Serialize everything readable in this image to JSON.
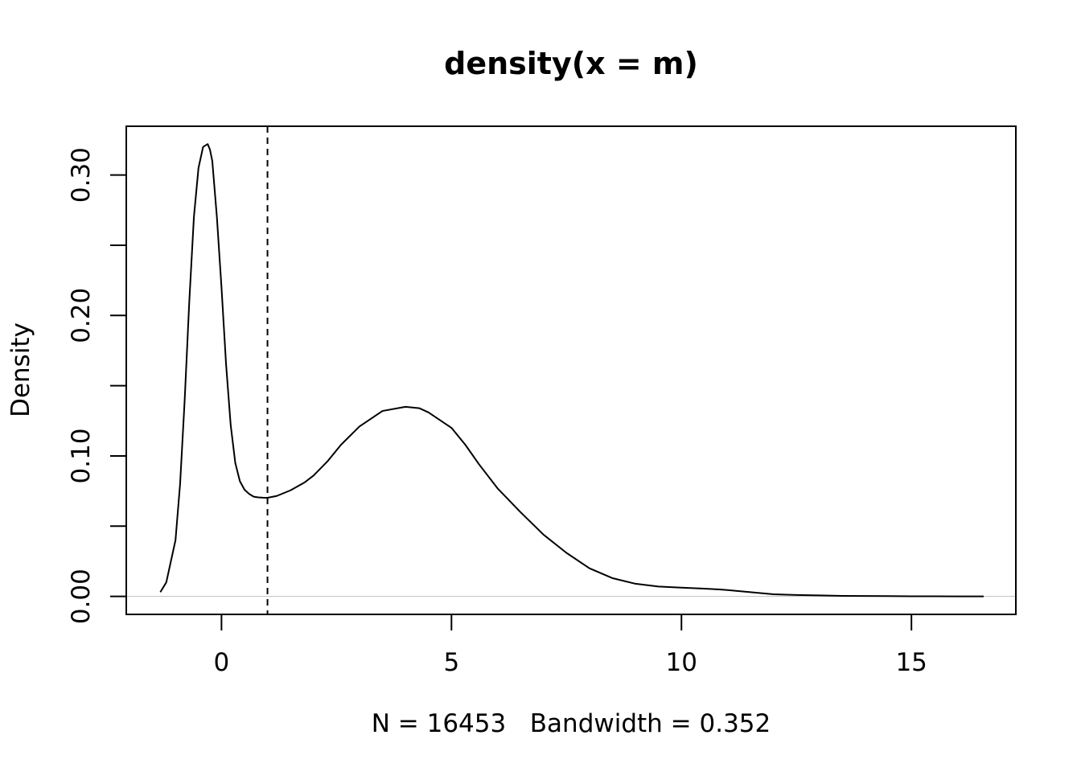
{
  "chart_data": {
    "type": "line",
    "title": "density(x = m)",
    "xlabel": "N = 16453   Bandwidth = 0.352",
    "ylabel": "Density",
    "xlim": [
      -2.07,
      17.27
    ],
    "ylim": [
      -0.0128,
      0.3347
    ],
    "x_ticks": [
      0,
      5,
      10,
      15
    ],
    "x_tick_labels": [
      "0",
      "5",
      "10",
      "15"
    ],
    "y_ticks": [
      0.0,
      0.05,
      0.1,
      0.15,
      0.2,
      0.25,
      0.3
    ],
    "y_tick_labels": [
      "0.00",
      "",
      "0.10",
      "",
      "0.20",
      "",
      "0.30"
    ],
    "grid": false,
    "legend": "none",
    "colors": {
      "line": "#000000",
      "baseline": "#bebebe",
      "vline": "#000000"
    },
    "baseline": 0,
    "vline": {
      "x": 1.0,
      "style": "dashed"
    },
    "series": [
      {
        "x": [
          -1.33,
          -1.2,
          -1.0,
          -0.9,
          -0.8,
          -0.7,
          -0.6,
          -0.5,
          -0.4,
          -0.3,
          -0.25,
          -0.2,
          -0.1,
          0.0,
          0.1,
          0.2,
          0.3,
          0.4,
          0.5,
          0.6,
          0.7,
          0.8,
          0.9,
          1.0,
          1.2,
          1.5,
          1.8,
          2.0,
          2.3,
          2.6,
          3.0,
          3.5,
          4.0,
          4.3,
          4.5,
          5.0,
          5.3,
          5.6,
          6.0,
          6.5,
          7.0,
          7.5,
          8.0,
          8.5,
          9.0,
          9.5,
          10.0,
          10.5,
          10.8,
          11.0,
          11.5,
          12.0,
          12.5,
          13.0,
          13.5,
          14.0,
          14.5,
          15.0,
          15.5,
          16.0,
          16.57
        ],
        "y": [
          0.003,
          0.01,
          0.04,
          0.08,
          0.14,
          0.21,
          0.27,
          0.305,
          0.32,
          0.322,
          0.318,
          0.31,
          0.27,
          0.22,
          0.165,
          0.122,
          0.095,
          0.082,
          0.076,
          0.073,
          0.071,
          0.0705,
          0.0703,
          0.0702,
          0.0715,
          0.0755,
          0.081,
          0.086,
          0.096,
          0.108,
          0.121,
          0.132,
          0.135,
          0.134,
          0.131,
          0.12,
          0.108,
          0.094,
          0.077,
          0.06,
          0.044,
          0.031,
          0.02,
          0.013,
          0.009,
          0.007,
          0.0062,
          0.0055,
          0.005,
          0.0045,
          0.003,
          0.0015,
          0.001,
          0.0007,
          0.0004,
          0.0003,
          0.0002,
          0.0001,
          0.0001,
          0.0,
          0.0
        ]
      }
    ]
  }
}
